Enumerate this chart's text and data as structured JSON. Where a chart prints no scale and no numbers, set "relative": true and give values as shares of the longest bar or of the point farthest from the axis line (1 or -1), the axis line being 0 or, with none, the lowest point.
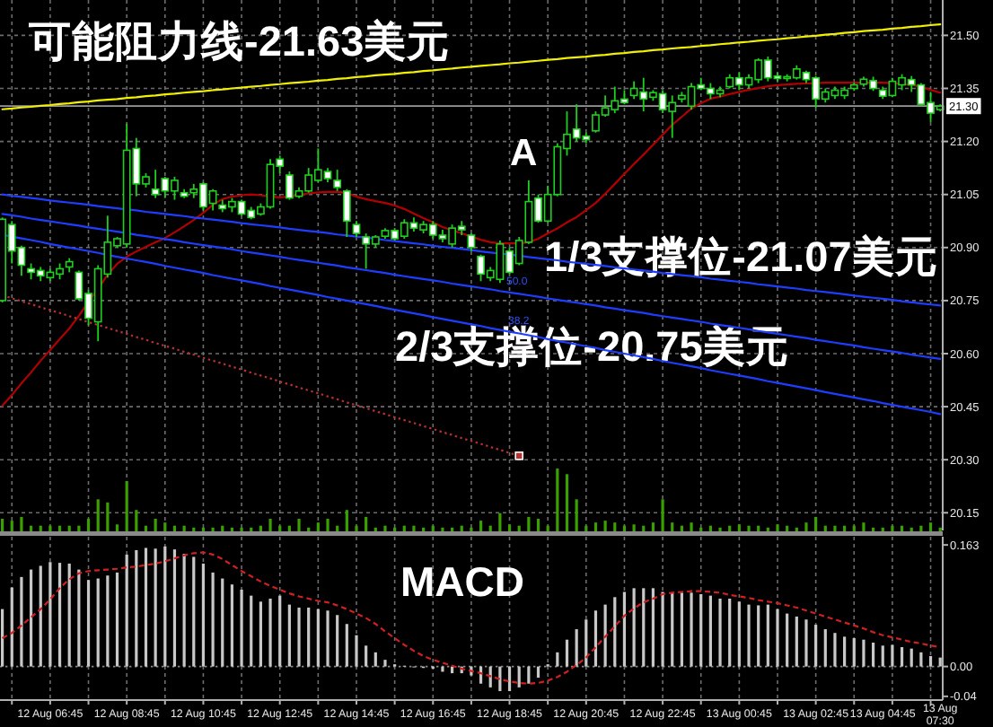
{
  "chart_data": [
    {
      "type": "candlestick",
      "title": "可能阻力线-21.63美元",
      "annotations": [
        "A",
        "1/3支撑位-21.07美元",
        "2/3支撑位-20.75美元",
        "50.0",
        "38.2"
      ],
      "categories": [
        null,
        null,
        null,
        null,
        null,
        "12 Aug 06:45",
        null,
        null,
        null,
        null,
        null,
        null,
        null,
        "12 Aug 08:45",
        null,
        null,
        null,
        null,
        null,
        null,
        null,
        "12 Aug 10:45",
        null,
        null,
        null,
        null,
        null,
        null,
        null,
        "12 Aug 12:45",
        null,
        null,
        null,
        null,
        null,
        null,
        null,
        "12 Aug 14:45",
        null,
        null,
        null,
        null,
        null,
        null,
        null,
        "12 Aug 16:45",
        null,
        null,
        null,
        null,
        null,
        null,
        null,
        "12 Aug 18:45",
        null,
        null,
        null,
        null,
        null,
        null,
        null,
        "12 Aug 20:45",
        null,
        null,
        null,
        null,
        null,
        null,
        null,
        "12 Aug 22:45",
        null,
        null,
        null,
        null,
        null,
        null,
        null,
        "13 Aug 00:45",
        null,
        null,
        null,
        null,
        null,
        null,
        null,
        "13 Aug 02:45",
        null,
        null,
        null,
        null,
        null,
        null,
        "13 Aug 04:45",
        null,
        null,
        null,
        null,
        null,
        "13 Aug 07:30"
      ],
      "ylim": [
        20.1,
        21.6
      ],
      "yticks": [
        {
          "value": 21.5,
          "label": "21.50"
        },
        21.35,
        {
          "value": 21.2,
          "label": "21.20"
        },
        21.05,
        {
          "value": 20.9,
          "label": "20.90"
        },
        20.75,
        {
          "value": 20.6,
          "label": "20.60"
        },
        20.45,
        {
          "value": 20.3,
          "label": "20.30"
        },
        20.15
      ],
      "grid": true,
      "tick_labels": "y",
      "ref_lines": [
        {
          "axis": "y",
          "value": 21.3,
          "label": "21.30",
          "color": "#9a9a9a"
        }
      ],
      "color": "#1ed01e",
      "colors": [
        "#000000",
        "#ffffff",
        "#ffffff",
        "#ffffff",
        "#ffffff",
        "#000000",
        "#000000",
        "#000000",
        "#ffffff",
        "#ffffff",
        "#000000",
        "#000000",
        "#000000",
        "#000000",
        "#ffffff",
        "#000000",
        "#ffffff",
        "#ffffff",
        "#000000",
        "#ffffff",
        "#000000",
        "#ffffff",
        "#000000",
        "#ffffff",
        "#000000",
        "#ffffff",
        "#ffffff",
        "#000000",
        "#000000",
        "#ffffff",
        "#ffffff",
        "#000000",
        "#000000",
        "#000000",
        "#ffffff",
        "#ffffff",
        "#ffffff",
        "#ffffff",
        "#ffffff",
        "#000000",
        "#000000",
        "#ffffff",
        "#000000",
        "#ffffff",
        "#000000",
        "#ffffff",
        "#ffffff",
        "#000000",
        "#ffffff",
        "#ffffff",
        "#ffffff",
        "#000000",
        "#000000",
        "#ffffff",
        "#000000",
        "#000000",
        "#ffffff",
        "#000000",
        "#000000",
        "#000000",
        "#ffffff",
        "#ffffff",
        "#000000",
        "#000000",
        "#000000",
        "#ffffff",
        "#000000",
        "#ffffff",
        "#000000",
        "#ffffff",
        "#000000",
        "#000000",
        "#000000",
        "#ffffff",
        "#ffffff",
        "#000000",
        "#000000",
        "#ffffff",
        "#000000",
        "#000000",
        "#ffffff",
        "#ffffff",
        "#000000",
        "#000000",
        "#ffffff",
        "#ffffff",
        "#000000",
        "#000000",
        "#000000",
        "#000000",
        "#000000",
        "#ffffff",
        "#ffffff",
        "#000000",
        "#000000",
        "#ffffff",
        "#ffffff",
        "#ffffff",
        "#000000"
      ],
      "ohlc": [
        [
          20.75,
          20.985,
          20.745,
          20.98
        ],
        [
          20.965,
          20.975,
          20.855,
          20.89
        ],
        [
          20.9,
          20.905,
          20.82,
          20.85
        ],
        [
          20.84,
          20.855,
          20.81,
          20.83
        ],
        [
          20.835,
          20.845,
          20.805,
          20.82
        ],
        [
          20.815,
          20.84,
          20.805,
          20.83
        ],
        [
          20.825,
          20.855,
          20.81,
          20.84
        ],
        [
          20.845,
          20.87,
          20.83,
          20.86
        ],
        [
          20.83,
          20.835,
          20.75,
          20.755
        ],
        [
          20.77,
          20.78,
          20.68,
          20.7
        ],
        [
          20.69,
          20.85,
          20.635,
          20.84
        ],
        [
          20.825,
          20.99,
          20.815,
          20.915
        ],
        [
          20.905,
          20.93,
          20.9,
          20.925
        ],
        [
          20.91,
          21.25,
          20.9,
          21.175
        ],
        [
          21.18,
          21.21,
          21.045,
          21.08
        ],
        [
          21.08,
          21.11,
          21.07,
          21.1
        ],
        [
          21.065,
          21.12,
          21.04,
          21.05
        ],
        [
          21.095,
          21.1,
          21.04,
          21.06
        ],
        [
          21.06,
          21.1,
          21.035,
          21.09
        ],
        [
          21.055,
          21.065,
          21.04,
          21.045
        ],
        [
          21.055,
          21.08,
          21.04,
          21.065
        ],
        [
          21.08,
          21.085,
          21.005,
          21.015
        ],
        [
          21.025,
          21.065,
          21.005,
          21.06
        ],
        [
          21.02,
          21.035,
          21.0,
          21.01
        ],
        [
          21.015,
          21.04,
          21.0,
          21.03
        ],
        [
          21.03,
          21.035,
          20.99,
          20.995
        ],
        [
          21.005,
          21.015,
          20.98,
          20.985
        ],
        [
          20.995,
          21.025,
          20.99,
          21.015
        ],
        [
          21.015,
          21.15,
          21.01,
          21.135
        ],
        [
          21.15,
          21.16,
          21.11,
          21.13
        ],
        [
          21.105,
          21.115,
          21.035,
          21.04
        ],
        [
          21.045,
          21.07,
          21.04,
          21.06
        ],
        [
          21.06,
          21.125,
          21.055,
          21.105
        ],
        [
          21.09,
          21.18,
          21.085,
          21.12
        ],
        [
          21.115,
          21.125,
          21.085,
          21.095
        ],
        [
          21.09,
          21.12,
          21.06,
          21.07
        ],
        [
          21.06,
          21.065,
          20.93,
          20.975
        ],
        [
          20.965,
          20.975,
          20.93,
          20.94
        ],
        [
          20.93,
          20.94,
          20.84,
          20.91
        ],
        [
          20.91,
          20.935,
          20.9,
          20.93
        ],
        [
          20.932,
          20.955,
          20.925,
          20.948
        ],
        [
          20.948,
          20.955,
          20.92,
          20.925
        ],
        [
          20.932,
          20.98,
          20.925,
          20.97
        ],
        [
          20.97,
          20.985,
          20.945,
          20.955
        ],
        [
          20.95,
          20.975,
          20.94,
          20.965
        ],
        [
          20.965,
          20.975,
          20.925,
          20.935
        ],
        [
          20.935,
          20.95,
          20.915,
          20.925
        ],
        [
          20.91,
          20.965,
          20.9,
          20.955
        ],
        [
          20.96,
          20.975,
          20.935,
          20.95
        ],
        [
          20.935,
          20.94,
          20.89,
          20.9
        ],
        [
          20.875,
          20.88,
          20.805,
          20.825
        ],
        [
          20.815,
          20.845,
          20.805,
          20.835
        ],
        [
          20.81,
          20.92,
          20.8,
          20.91
        ],
        [
          20.89,
          20.9,
          20.825,
          20.83
        ],
        [
          20.855,
          20.93,
          20.85,
          20.92
        ],
        [
          20.915,
          21.09,
          20.91,
          21.03
        ],
        [
          21.04,
          21.05,
          20.97,
          20.975
        ],
        [
          20.975,
          21.075,
          20.97,
          21.05
        ],
        [
          21.05,
          21.195,
          21.045,
          21.185
        ],
        [
          21.18,
          21.285,
          21.16,
          21.22
        ],
        [
          21.235,
          21.305,
          21.2,
          21.21
        ],
        [
          21.215,
          21.225,
          21.195,
          21.205
        ],
        [
          21.23,
          21.285,
          21.225,
          21.275
        ],
        [
          21.275,
          21.33,
          21.27,
          21.295
        ],
        [
          21.29,
          21.355,
          21.28,
          21.315
        ],
        [
          21.32,
          21.345,
          21.305,
          21.31
        ],
        [
          21.33,
          21.37,
          21.32,
          21.35
        ],
        [
          21.34,
          21.38,
          21.285,
          21.32
        ],
        [
          21.325,
          21.345,
          21.315,
          21.338
        ],
        [
          21.335,
          21.345,
          21.28,
          21.29
        ],
        [
          21.285,
          21.33,
          21.21,
          21.31
        ],
        [
          21.32,
          21.34,
          21.31,
          21.33
        ],
        [
          21.3,
          21.365,
          21.29,
          21.355
        ],
        [
          21.36,
          21.38,
          21.345,
          21.35
        ],
        [
          21.35,
          21.365,
          21.32,
          21.335
        ],
        [
          21.335,
          21.355,
          21.325,
          21.345
        ],
        [
          21.355,
          21.39,
          21.35,
          21.38
        ],
        [
          21.38,
          21.395,
          21.345,
          21.36
        ],
        [
          21.36,
          21.39,
          21.35,
          21.38
        ],
        [
          21.375,
          21.435,
          21.365,
          21.43
        ],
        [
          21.43,
          21.44,
          21.37,
          21.38
        ],
        [
          21.385,
          21.395,
          21.37,
          21.378
        ],
        [
          21.378,
          21.39,
          21.37,
          21.383
        ],
        [
          21.38,
          21.415,
          21.375,
          21.405
        ],
        [
          21.395,
          21.4,
          21.365,
          21.375
        ],
        [
          21.38,
          21.385,
          21.295,
          21.32
        ],
        [
          21.32,
          21.35,
          21.31,
          21.34
        ],
        [
          21.33,
          21.355,
          21.32,
          21.345
        ],
        [
          21.33,
          21.355,
          21.32,
          21.345
        ],
        [
          21.35,
          21.367,
          21.343,
          21.36
        ],
        [
          21.362,
          21.383,
          21.355,
          21.376
        ],
        [
          21.372,
          21.383,
          21.343,
          21.35
        ],
        [
          21.345,
          21.355,
          21.32,
          21.328
        ],
        [
          21.33,
          21.38,
          21.325,
          21.37
        ],
        [
          21.36,
          21.39,
          21.345,
          21.38
        ],
        [
          21.375,
          21.385,
          21.34,
          21.36
        ],
        [
          21.36,
          21.365,
          21.3,
          21.305
        ],
        [
          21.31,
          21.34,
          21.255,
          21.28
        ],
        [
          21.29,
          21.305,
          21.285,
          21.3
        ]
      ],
      "series": [
        {
          "type": "line",
          "color": "#b00000",
          "values": [
            20.453,
            20.483,
            20.516,
            20.547,
            20.58,
            20.61,
            20.641,
            20.671,
            20.707,
            20.747,
            20.783,
            20.823,
            20.854,
            20.874,
            20.889,
            20.902,
            20.915,
            20.927,
            20.943,
            20.96,
            20.978,
            20.998,
            21.021,
            21.037,
            21.044,
            21.048,
            21.05,
            21.048,
            21.044,
            21.042,
            21.044,
            21.049,
            21.053,
            21.056,
            21.057,
            21.058,
            21.054,
            21.044,
            21.037,
            21.031,
            21.026,
            21.019,
            21.009,
            20.996,
            20.983,
            20.971,
            20.958,
            20.949,
            20.94,
            20.931,
            20.922,
            20.915,
            20.912,
            20.912,
            20.912,
            20.915,
            20.925,
            20.94,
            20.954,
            20.971,
            20.986,
            21.006,
            21.026,
            21.052,
            21.08,
            21.108,
            21.136,
            21.163,
            21.191,
            21.219,
            21.247,
            21.27,
            21.293,
            21.308,
            21.321,
            21.327,
            21.334,
            21.34,
            21.346,
            21.351,
            21.356,
            21.359,
            21.361,
            21.363,
            21.364,
            21.365,
            21.366,
            21.366,
            21.366,
            21.366,
            21.366,
            21.366,
            21.366,
            21.365,
            21.363,
            21.36,
            21.354,
            21.346,
            21.338
          ]
        },
        {
          "type": "line",
          "color": "#f0f000",
          "values": [
            21.291,
            21.293,
            21.296,
            21.298,
            21.301,
            21.303,
            21.306,
            21.308,
            21.311,
            21.313,
            21.316,
            21.318,
            21.32,
            21.323,
            21.325,
            21.328,
            21.33,
            21.333,
            21.335,
            21.338,
            21.34,
            21.342,
            21.345,
            21.347,
            21.35,
            21.352,
            21.355,
            21.357,
            21.36,
            21.362,
            21.365,
            21.367,
            21.369,
            21.372,
            21.374,
            21.377,
            21.379,
            21.382,
            21.384,
            21.387,
            21.389,
            21.391,
            21.394,
            21.396,
            21.399,
            21.401,
            21.404,
            21.406,
            21.409,
            21.411,
            21.414,
            21.416,
            21.418,
            21.421,
            21.423,
            21.426,
            21.428,
            21.431,
            21.433,
            21.436,
            21.438,
            21.44,
            21.443,
            21.445,
            21.448,
            21.45,
            21.453,
            21.455,
            21.458,
            21.46,
            21.463,
            21.465,
            21.467,
            21.47,
            21.472,
            21.475,
            21.477,
            21.48,
            21.482,
            21.485,
            21.487,
            21.489,
            21.492,
            21.494,
            21.497,
            21.499,
            21.502,
            21.504,
            21.507,
            21.509,
            21.512,
            21.514,
            21.516,
            21.519,
            21.521,
            21.524,
            21.526,
            21.529,
            21.531
          ]
        },
        {
          "type": "line",
          "color": "#1f3dff",
          "values": [
            21.05,
            21.046,
            21.043,
            21.04,
            21.037,
            21.033,
            21.03,
            21.027,
            21.024,
            21.021,
            21.017,
            21.014,
            21.011,
            21.008,
            21.005,
            21.001,
            20.998,
            20.995,
            20.992,
            20.989,
            20.985,
            20.982,
            20.979,
            20.976,
            20.973,
            20.969,
            20.966,
            20.963,
            20.96,
            20.957,
            20.953,
            20.95,
            20.947,
            20.944,
            20.941,
            20.937,
            20.934,
            20.931,
            20.928,
            20.925,
            20.921,
            20.918,
            20.915,
            20.912,
            20.909,
            20.905,
            20.902,
            20.899,
            20.896,
            20.893,
            20.889,
            20.886,
            20.883,
            20.88,
            20.877,
            20.873,
            20.87,
            20.867,
            20.864,
            20.86,
            20.857,
            20.854,
            20.851,
            20.848,
            20.844,
            20.841,
            20.838,
            20.835,
            20.832,
            20.828,
            20.825,
            20.822,
            20.819,
            20.816,
            20.812,
            20.809,
            20.806,
            20.803,
            20.8,
            20.796,
            20.793,
            20.79,
            20.787,
            20.784,
            20.78,
            20.777,
            20.774,
            20.771,
            20.768,
            20.764,
            20.761,
            20.758,
            20.755,
            20.752,
            20.748,
            20.745,
            20.742,
            20.739,
            20.736
          ]
        },
        {
          "type": "line",
          "color": "#1f3dff",
          "values": [
            20.995,
            20.991,
            20.987,
            20.982,
            20.978,
            20.974,
            20.97,
            20.966,
            20.962,
            20.957,
            20.953,
            20.949,
            20.945,
            20.941,
            20.936,
            20.932,
            20.928,
            20.924,
            20.92,
            20.915,
            20.911,
            20.907,
            20.903,
            20.899,
            20.895,
            20.89,
            20.886,
            20.882,
            20.878,
            20.874,
            20.869,
            20.865,
            20.861,
            20.857,
            20.853,
            20.849,
            20.844,
            20.84,
            20.836,
            20.832,
            20.828,
            20.823,
            20.819,
            20.815,
            20.811,
            20.807,
            20.803,
            20.798,
            20.794,
            20.79,
            20.786,
            20.782,
            20.777,
            20.773,
            20.769,
            20.765,
            20.761,
            20.756,
            20.752,
            20.748,
            20.744,
            20.74,
            20.736,
            20.731,
            20.727,
            20.723,
            20.719,
            20.715,
            20.71,
            20.706,
            20.702,
            20.698,
            20.694,
            20.69,
            20.685,
            20.681,
            20.677,
            20.673,
            20.669,
            20.664,
            20.66,
            20.656,
            20.652,
            20.648,
            20.644,
            20.639,
            20.635,
            20.631,
            20.627,
            20.623,
            20.618,
            20.614,
            20.61,
            20.606,
            20.602,
            20.597,
            20.593,
            20.589,
            20.585
          ]
        },
        {
          "type": "line",
          "color": "#1f3dff",
          "values": [
            20.936,
            20.931,
            20.926,
            20.921,
            20.916,
            20.91,
            20.905,
            20.9,
            20.895,
            20.89,
            20.885,
            20.879,
            20.874,
            20.869,
            20.864,
            20.859,
            20.854,
            20.848,
            20.843,
            20.838,
            20.833,
            20.828,
            20.822,
            20.817,
            20.812,
            20.807,
            20.802,
            20.797,
            20.791,
            20.786,
            20.781,
            20.776,
            20.771,
            20.766,
            20.76,
            20.755,
            20.75,
            20.745,
            20.74,
            20.735,
            20.729,
            20.724,
            20.719,
            20.714,
            20.709,
            20.703,
            20.698,
            20.693,
            20.688,
            20.683,
            20.678,
            20.672,
            20.667,
            20.662,
            20.657,
            20.652,
            20.647,
            20.641,
            20.636,
            20.631,
            20.626,
            20.621,
            20.616,
            20.61,
            20.605,
            20.6,
            20.595,
            20.59,
            20.585,
            20.579,
            20.574,
            20.569,
            20.564,
            20.559,
            20.553,
            20.548,
            20.543,
            20.538,
            20.533,
            20.528,
            20.522,
            20.517,
            20.512,
            20.507,
            20.502,
            20.497,
            20.491,
            20.486,
            20.481,
            20.476,
            20.471,
            20.466,
            20.46,
            20.455,
            20.45,
            20.445,
            20.44,
            20.435,
            20.429
          ]
        },
        {
          "type": "line",
          "color": "#b83030",
          "line_style": "dotted",
          "values": [
            20.765,
            20.757,
            20.748,
            20.74,
            20.731,
            20.723,
            20.715,
            20.706,
            20.698,
            20.689,
            20.681,
            20.673,
            20.664,
            20.656,
            20.647,
            20.639,
            20.63,
            20.622,
            20.614,
            20.605,
            20.597,
            20.588,
            20.58,
            20.572,
            20.563,
            20.555,
            20.546,
            20.538,
            20.53,
            20.521,
            20.513,
            20.504,
            20.496,
            20.488,
            20.479,
            20.471,
            20.462,
            20.454,
            20.446,
            20.437,
            20.429,
            20.42,
            20.412,
            20.404,
            20.395,
            20.387,
            20.378,
            20.37,
            20.361,
            20.353,
            20.345,
            20.336,
            20.328,
            20.319,
            20.311,
            null,
            null,
            null,
            null,
            null,
            null,
            null,
            null,
            null,
            null,
            null,
            null,
            null,
            null,
            null,
            null,
            null,
            null,
            null,
            null,
            null,
            null,
            null,
            null,
            null,
            null,
            null,
            null,
            null,
            null,
            null,
            null,
            null,
            null,
            null,
            null,
            null,
            null,
            null,
            null,
            null,
            null,
            null,
            null
          ]
        },
        {
          "type": "scatter",
          "color": "#b83030",
          "marker": "square",
          "values": [
            null,
            null,
            null,
            null,
            null,
            null,
            null,
            null,
            null,
            null,
            null,
            null,
            null,
            null,
            null,
            null,
            null,
            null,
            null,
            null,
            null,
            null,
            null,
            null,
            null,
            null,
            null,
            null,
            null,
            null,
            null,
            null,
            null,
            null,
            null,
            null,
            null,
            null,
            null,
            null,
            null,
            null,
            null,
            null,
            null,
            null,
            null,
            null,
            null,
            null,
            null,
            null,
            null,
            null,
            20.311,
            null,
            null,
            null,
            null,
            null,
            null,
            null,
            null,
            null,
            null,
            null,
            null,
            null,
            null,
            null,
            null,
            null,
            null,
            null,
            null,
            null,
            null,
            null,
            null,
            null,
            null,
            null,
            null,
            null,
            null,
            null,
            null,
            null,
            null,
            null,
            null,
            null,
            null,
            null,
            null,
            null,
            null,
            null,
            null
          ]
        }
      ]
    },
    {
      "type": "bar",
      "relative": true,
      "tick_labels": false,
      "color": "#3aa000",
      "categories": [
        null,
        null,
        null,
        null,
        null,
        "12 Aug 06:45",
        null,
        null,
        null,
        null,
        null,
        null,
        null,
        "12 Aug 08:45",
        null,
        null,
        null,
        null,
        null,
        null,
        null,
        "12 Aug 10:45",
        null,
        null,
        null,
        null,
        null,
        null,
        null,
        "12 Aug 12:45",
        null,
        null,
        null,
        null,
        null,
        null,
        null,
        "12 Aug 14:45",
        null,
        null,
        null,
        null,
        null,
        null,
        null,
        "12 Aug 16:45",
        null,
        null,
        null,
        null,
        null,
        null,
        null,
        "12 Aug 18:45",
        null,
        null,
        null,
        null,
        null,
        null,
        null,
        "12 Aug 20:45",
        null,
        null,
        null,
        null,
        null,
        null,
        null,
        "12 Aug 22:45",
        null,
        null,
        null,
        null,
        null,
        null,
        null,
        "13 Aug 00:45",
        null,
        null,
        null,
        null,
        null,
        null,
        null,
        "13 Aug 02:45",
        null,
        null,
        null,
        null,
        null,
        null,
        "13 Aug 04:45",
        null,
        null,
        null,
        null,
        null,
        "13 Aug 07:30"
      ],
      "values": [
        0.2,
        0.17,
        0.23,
        0.09,
        0.09,
        0.09,
        0.09,
        0.09,
        0.09,
        0.2,
        0.51,
        0.46,
        0.11,
        0.8,
        0.34,
        0.09,
        0.2,
        0.14,
        0.09,
        0.09,
        0.06,
        0.06,
        0.06,
        0.09,
        0.06,
        0.06,
        0.06,
        0.09,
        0.2,
        0.09,
        0.09,
        0.2,
        0.06,
        0.14,
        0.2,
        0.09,
        0.34,
        0.09,
        0.23,
        0.06,
        0.09,
        0.06,
        0.09,
        0.09,
        0.06,
        0.09,
        0.06,
        0.06,
        0.09,
        0.06,
        0.17,
        0.09,
        0.29,
        0.11,
        0.09,
        0.23,
        0.2,
        0.09,
        1,
        0.91,
        0.51,
        0.09,
        0.14,
        0.17,
        0.14,
        0.09,
        0.11,
        0.09,
        0.14,
        0.51,
        0.14,
        0.09,
        0.14,
        0.06,
        0.09,
        0.06,
        0.09,
        0.11,
        0.09,
        0.09,
        0.06,
        0.11,
        0.09,
        0.06,
        0.14,
        0.23,
        0.09,
        0.09,
        0.09,
        0.09,
        0.14,
        0.06,
        0.06,
        0.09,
        0.09,
        0.06,
        0.09,
        0.14,
        0.06
      ]
    },
    {
      "type": "bar",
      "title": "MACD",
      "categories": [
        null,
        null,
        null,
        null,
        null,
        "12 Aug 06:45",
        null,
        null,
        null,
        null,
        null,
        null,
        null,
        "12 Aug 08:45",
        null,
        null,
        null,
        null,
        null,
        null,
        null,
        "12 Aug 10:45",
        null,
        null,
        null,
        null,
        null,
        null,
        null,
        "12 Aug 12:45",
        null,
        null,
        null,
        null,
        null,
        null,
        null,
        "12 Aug 14:45",
        null,
        null,
        null,
        null,
        null,
        null,
        null,
        "12 Aug 16:45",
        null,
        null,
        null,
        null,
        null,
        null,
        null,
        "12 Aug 18:45",
        null,
        null,
        null,
        null,
        null,
        null,
        null,
        "12 Aug 20:45",
        null,
        null,
        null,
        null,
        null,
        null,
        null,
        "12 Aug 22:45",
        null,
        null,
        null,
        null,
        null,
        null,
        null,
        "13 Aug 00:45",
        null,
        null,
        null,
        null,
        null,
        null,
        null,
        "13 Aug 02:45",
        null,
        null,
        null,
        null,
        null,
        null,
        "13 Aug 04:45",
        null,
        null,
        null,
        null,
        null,
        "13 Aug 07:30"
      ],
      "ylim": [
        -0.045,
        0.174
      ],
      "yticks": [
        0.163,
        {
          "value": 0,
          "label": "0.00"
        },
        -0.04
      ],
      "grid": "x",
      "ref_lines": [
        {
          "axis": "y",
          "value": 0,
          "color": "#8a8a8a",
          "line_style": "dotted"
        }
      ],
      "series": [
        {
          "type": "bar",
          "color": "#c8c8c8",
          "values": [
            0.077,
            0.106,
            0.12,
            0.13,
            0.135,
            0.14,
            0.139,
            0.138,
            0.13,
            0.116,
            0.118,
            0.122,
            0.126,
            0.15,
            0.156,
            0.159,
            0.158,
            0.161,
            0.157,
            0.151,
            0.147,
            0.138,
            0.126,
            0.118,
            0.11,
            0.103,
            0.095,
            0.087,
            0.091,
            0.095,
            0.083,
            0.079,
            0.079,
            0.077,
            0.075,
            0.069,
            0.057,
            0.042,
            0.028,
            0.019,
            0.009,
            0.003,
            0.001,
            -0.001,
            -0.002,
            -0.003,
            -0.007,
            -0.009,
            -0.009,
            -0.012,
            -0.023,
            -0.028,
            -0.033,
            -0.033,
            -0.028,
            -0.023,
            -0.015,
            0.003,
            0.019,
            0.036,
            0.05,
            0.063,
            0.075,
            0.083,
            0.093,
            0.1,
            0.105,
            0.105,
            0.105,
            0.1,
            0.099,
            0.099,
            0.099,
            0.097,
            0.095,
            0.091,
            0.091,
            0.087,
            0.083,
            0.082,
            0.083,
            0.077,
            0.071,
            0.067,
            0.063,
            0.056,
            0.05,
            0.045,
            0.04,
            0.038,
            0.036,
            0.032,
            0.028,
            0.029,
            0.026,
            0.024,
            0.019,
            0.014,
            0.012
          ]
        },
        {
          "type": "line",
          "color": "#d02020",
          "line_style": "dashed",
          "values": [
            0.038,
            0.045,
            0.055,
            0.066,
            0.077,
            0.09,
            0.105,
            0.117,
            0.125,
            0.128,
            0.129,
            0.13,
            0.131,
            0.133,
            0.134,
            0.136,
            0.138,
            0.141,
            0.145,
            0.149,
            0.152,
            0.153,
            0.15,
            0.144,
            0.136,
            0.128,
            0.121,
            0.114,
            0.108,
            0.103,
            0.098,
            0.094,
            0.091,
            0.088,
            0.086,
            0.082,
            0.077,
            0.071,
            0.065,
            0.057,
            0.047,
            0.038,
            0.029,
            0.021,
            0.014,
            0.009,
            0.005,
            0.001,
            -0.003,
            -0.006,
            -0.009,
            -0.013,
            -0.017,
            -0.02,
            -0.022,
            -0.023,
            -0.022,
            -0.019,
            -0.014,
            -0.007,
            0.002,
            0.012,
            0.026,
            0.04,
            0.054,
            0.068,
            0.078,
            0.086,
            0.091,
            0.097,
            0.099,
            0.1,
            0.101,
            0.101,
            0.1,
            0.099,
            0.096,
            0.094,
            0.092,
            0.089,
            0.087,
            0.085,
            0.082,
            0.079,
            0.075,
            0.071,
            0.067,
            0.063,
            0.059,
            0.055,
            0.051,
            0.046,
            0.042,
            0.039,
            0.036,
            0.033,
            0.031,
            0.028,
            0.026
          ]
        }
      ]
    }
  ]
}
